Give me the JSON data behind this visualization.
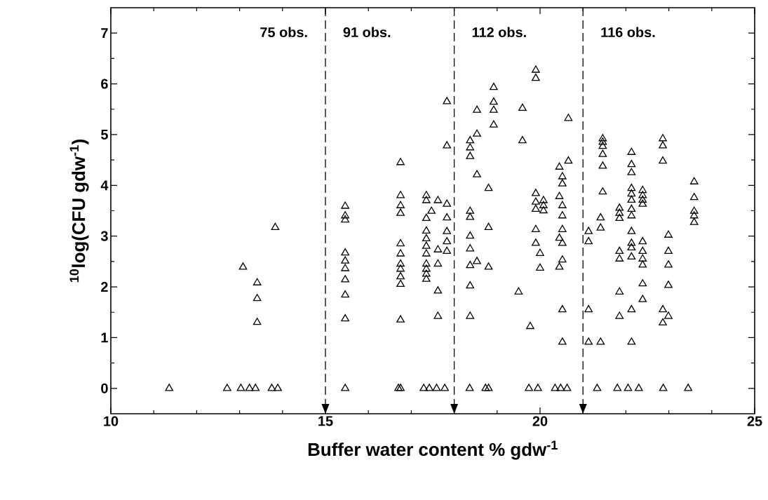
{
  "chart_data": {
    "type": "scatter",
    "xlabel": "Buffer water content % gdw$^{-1}$",
    "ylabel": "$^{10}$log(CFU gdw$^{-1}$)",
    "xlim": [
      10,
      25
    ],
    "xticks": [
      10,
      15,
      20,
      25
    ],
    "ylim": [
      -0.5,
      7.5
    ],
    "yticks": [
      0,
      1,
      2,
      3,
      4,
      5,
      6,
      7
    ],
    "grid": false,
    "marker": "triangle",
    "ref_lines": [
      {
        "axis": "x",
        "value": 15,
        "line_style": "dashed"
      },
      {
        "axis": "x",
        "value": 18,
        "line_style": "dashed"
      },
      {
        "axis": "x",
        "value": 21,
        "line_style": "dashed"
      }
    ],
    "annotations": [
      "75 obs.",
      "91 obs.",
      "112 obs.",
      "116 obs."
    ],
    "series": [
      {
        "color": "#000000",
        "x": [
          11.36,
          12.71,
          13.03,
          13.23,
          13.37,
          13.75,
          13.89,
          13.08,
          13.41,
          13.41,
          13.41,
          13.83,
          15.46,
          15.46,
          15.46,
          15.46,
          15.46,
          15.46,
          15.46,
          15.46,
          15.46,
          15.46,
          16.75,
          16.75,
          16.75,
          16.75,
          16.75,
          16.75,
          16.75,
          16.75,
          16.75,
          16.75,
          16.75,
          16.75,
          16.7,
          17.35,
          17.35,
          17.35,
          17.35,
          17.35,
          17.35,
          17.35,
          17.35,
          17.35,
          17.35,
          17.35,
          17.29,
          17.42,
          17.59,
          17.78,
          17.62,
          17.62,
          17.62,
          17.62,
          17.62,
          17.47,
          17.83,
          17.83,
          17.83,
          17.83,
          17.83,
          17.83,
          17.83,
          18.37,
          18.37,
          18.37,
          18.37,
          18.37,
          18.37,
          18.37,
          18.37,
          18.37,
          18.37,
          18.36,
          18.53,
          18.53,
          18.53,
          18.53,
          18.8,
          18.8,
          18.8,
          18.73,
          18.8,
          18.92,
          18.92,
          18.92,
          18.92,
          19.59,
          19.59,
          19.5,
          19.9,
          19.9,
          19.9,
          19.9,
          19.9,
          19.9,
          19.9,
          20.08,
          20.08,
          20.08,
          20.0,
          20.0,
          19.77,
          19.74,
          19.95,
          20.45,
          20.45,
          20.45,
          20.45,
          20.52,
          20.52,
          20.52,
          20.52,
          20.52,
          20.52,
          20.52,
          20.52,
          20.52,
          20.66,
          20.66,
          20.35,
          20.48,
          20.63,
          21.13,
          21.13,
          21.13,
          21.13,
          21.41,
          21.41,
          21.41,
          21.33,
          21.46,
          21.46,
          21.46,
          21.46,
          21.46,
          21.46,
          21.85,
          21.85,
          21.85,
          21.85,
          21.85,
          21.85,
          21.85,
          22.13,
          22.13,
          22.13,
          22.13,
          22.13,
          22.13,
          22.13,
          22.13,
          22.13,
          22.13,
          22.13,
          22.13,
          22.13,
          22.13,
          22.39,
          22.39,
          22.39,
          22.39,
          22.39,
          22.39,
          22.39,
          22.39,
          22.39,
          22.39,
          21.8,
          22.05,
          22.3,
          22.87,
          23.45,
          22.86,
          22.86,
          22.86,
          22.86,
          22.86,
          22.99,
          22.99,
          22.99,
          22.99,
          22.99,
          23.59,
          23.59,
          23.59,
          23.59,
          23.59
        ],
        "values": [
          0,
          0,
          0,
          0,
          0,
          0,
          0,
          2.39,
          2.08,
          1.77,
          1.3,
          3.17,
          3.59,
          3.4,
          3.32,
          2.67,
          2.51,
          2.36,
          2.14,
          1.84,
          1.37,
          0,
          4.45,
          3.8,
          3.6,
          3.45,
          2.85,
          2.65,
          2.45,
          2.35,
          2.2,
          2.05,
          1.35,
          0,
          0,
          3.8,
          3.7,
          3.35,
          3.1,
          2.95,
          2.8,
          2.65,
          2.45,
          2.35,
          2.25,
          2.15,
          0,
          0,
          0,
          0,
          3.7,
          2.73,
          2.45,
          1.92,
          1.42,
          3.49,
          5.65,
          4.78,
          3.63,
          3.36,
          3.09,
          2.89,
          2.7,
          4.88,
          4.74,
          4.57,
          3.49,
          3.37,
          3.0,
          2.75,
          2.42,
          2.02,
          1.42,
          0,
          5.48,
          5.01,
          4.21,
          2.5,
          3.94,
          3.17,
          2.39,
          0,
          0,
          5.93,
          5.64,
          5.48,
          5.19,
          5.52,
          4.88,
          1.9,
          6.27,
          6.11,
          3.84,
          3.67,
          3.53,
          3.13,
          2.86,
          3.7,
          3.6,
          3.5,
          2.66,
          2.37,
          1.22,
          0,
          0,
          4.36,
          3.78,
          2.96,
          2.39,
          4.17,
          4.03,
          3.6,
          3.4,
          3.13,
          2.86,
          2.53,
          1.55,
          0.91,
          5.32,
          4.48,
          0,
          0,
          0,
          3.09,
          2.89,
          1.55,
          0.91,
          3.36,
          3.16,
          0.91,
          0,
          4.92,
          4.85,
          4.77,
          4.61,
          4.38,
          3.87,
          3.55,
          3.45,
          3.35,
          2.7,
          2.55,
          1.9,
          1.42,
          4.65,
          4.41,
          4.25,
          3.94,
          3.83,
          3.71,
          3.53,
          3.4,
          3.09,
          2.86,
          2.77,
          2.59,
          1.55,
          0.91,
          3.9,
          3.8,
          3.71,
          3.63,
          2.89,
          2.7,
          2.55,
          2.43,
          2.06,
          1.75,
          0,
          0,
          0,
          0,
          0,
          4.92,
          4.78,
          4.48,
          1.55,
          1.29,
          3.02,
          2.7,
          2.43,
          2.03,
          1.42,
          4.07,
          3.76,
          3.49,
          3.4,
          3.27
        ]
      }
    ]
  }
}
